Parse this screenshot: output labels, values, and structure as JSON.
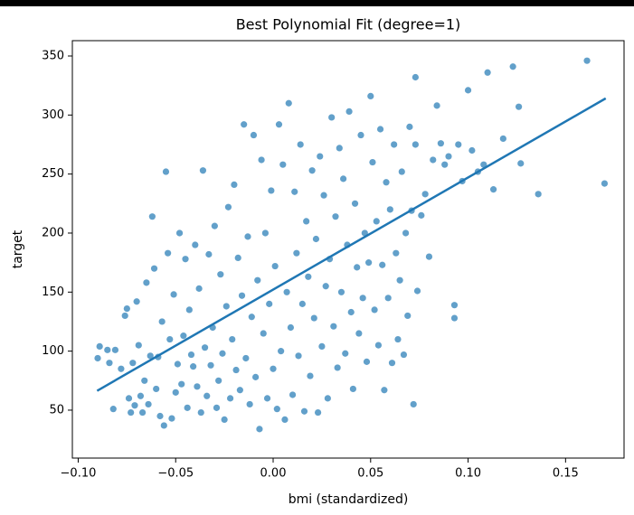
{
  "chart_data": {
    "type": "scatter",
    "title": "Best Polynomial Fit (degree=1)",
    "x_label": "bmi (standardized)",
    "y_label": "target",
    "xlim": [
      -0.103,
      0.18
    ],
    "ylim": [
      9.4,
      363
    ],
    "xticks": [
      {
        "value": -0.1,
        "label": "−0.10"
      },
      {
        "value": -0.05,
        "label": "−0.05"
      },
      {
        "value": 0,
        "label": "0.00"
      },
      {
        "value": 0.05,
        "label": "0.05"
      },
      {
        "value": 0.1,
        "label": "0.10"
      },
      {
        "value": 0.15,
        "label": "0.15"
      }
    ],
    "yticks": [
      50,
      100,
      150,
      200,
      250,
      300,
      350
    ],
    "series": [
      {
        "type": "scatter",
        "color": "#1f77b4",
        "x": [
          -0.09,
          -0.089,
          -0.085,
          -0.084,
          -0.082,
          -0.081,
          -0.078,
          -0.076,
          -0.075,
          -0.074,
          -0.073,
          -0.072,
          -0.071,
          -0.07,
          -0.069,
          -0.068,
          -0.067,
          -0.066,
          -0.065,
          -0.064,
          -0.063,
          -0.062,
          -0.061,
          -0.06,
          -0.059,
          -0.058,
          -0.057,
          -0.056,
          -0.055,
          -0.054,
          -0.053,
          -0.052,
          -0.051,
          -0.05,
          -0.049,
          -0.048,
          -0.047,
          -0.046,
          -0.045,
          -0.044,
          -0.043,
          -0.042,
          -0.041,
          -0.04,
          -0.039,
          -0.038,
          -0.037,
          -0.036,
          -0.035,
          -0.034,
          -0.033,
          -0.032,
          -0.031,
          -0.03,
          -0.029,
          -0.028,
          -0.027,
          -0.026,
          -0.025,
          -0.024,
          -0.023,
          -0.022,
          -0.021,
          -0.02,
          -0.019,
          -0.018,
          -0.017,
          -0.016,
          -0.015,
          -0.014,
          -0.013,
          -0.012,
          -0.011,
          -0.01,
          -0.009,
          -0.008,
          -0.007,
          -0.006,
          -0.005,
          -0.004,
          -0.003,
          -0.002,
          -0.001,
          0.0,
          0.001,
          0.002,
          0.003,
          0.004,
          0.005,
          0.006,
          0.007,
          0.008,
          0.009,
          0.01,
          0.011,
          0.012,
          0.013,
          0.014,
          0.015,
          0.016,
          0.017,
          0.018,
          0.019,
          0.02,
          0.021,
          0.022,
          0.023,
          0.024,
          0.025,
          0.026,
          0.027,
          0.028,
          0.029,
          0.03,
          0.031,
          0.032,
          0.033,
          0.034,
          0.035,
          0.036,
          0.037,
          0.038,
          0.039,
          0.04,
          0.041,
          0.042,
          0.043,
          0.044,
          0.045,
          0.046,
          0.047,
          0.048,
          0.049,
          0.05,
          0.051,
          0.052,
          0.053,
          0.054,
          0.055,
          0.056,
          0.057,
          0.058,
          0.059,
          0.06,
          0.061,
          0.062,
          0.063,
          0.064,
          0.065,
          0.066,
          0.067,
          0.068,
          0.069,
          0.07,
          0.071,
          0.072,
          0.073,
          0.074,
          0.076,
          0.078,
          0.08,
          0.082,
          0.084,
          0.086,
          0.088,
          0.09,
          0.093,
          0.093,
          0.095,
          0.097,
          0.1,
          0.102,
          0.105,
          0.108,
          0.11,
          0.113,
          0.118,
          0.123,
          0.126,
          0.127,
          0.136,
          0.161,
          0.17,
          0.073
        ],
        "values": [
          94,
          104,
          101,
          90,
          51,
          101,
          85,
          130,
          136,
          60,
          48,
          90,
          54,
          142,
          105,
          62,
          48,
          75,
          158,
          55,
          96,
          214,
          170,
          68,
          95,
          45,
          125,
          37,
          252,
          183,
          110,
          43,
          148,
          65,
          89,
          200,
          72,
          113,
          178,
          52,
          135,
          97,
          87,
          190,
          70,
          153,
          48,
          253,
          103,
          62,
          182,
          88,
          120,
          206,
          52,
          75,
          165,
          98,
          42,
          138,
          222,
          60,
          110,
          241,
          84,
          179,
          67,
          147,
          292,
          94,
          197,
          55,
          129,
          283,
          78,
          160,
          34,
          262,
          115,
          200,
          60,
          140,
          236,
          85,
          172,
          51,
          292,
          100,
          258,
          42,
          150,
          310,
          120,
          63,
          235,
          183,
          96,
          275,
          140,
          49,
          210,
          163,
          79,
          253,
          128,
          195,
          48,
          265,
          104,
          232,
          155,
          60,
          178,
          298,
          121,
          214,
          86,
          272,
          150,
          246,
          98,
          190,
          303,
          133,
          68,
          225,
          171,
          115,
          283,
          145,
          200,
          91,
          175,
          316,
          260,
          135,
          210,
          105,
          288,
          173,
          67,
          243,
          145,
          220,
          90,
          275,
          183,
          110,
          160,
          252,
          97,
          200,
          130,
          290,
          219,
          55,
          275,
          151,
          215,
          233,
          180,
          262,
          308,
          276,
          258,
          265,
          139,
          128,
          275,
          244,
          321,
          270,
          252,
          258,
          336,
          237,
          280,
          341,
          307,
          259,
          233,
          346,
          242,
          332
        ]
      },
      {
        "type": "line",
        "color": "#1f77b4",
        "x": [
          -0.0903,
          0.1706
        ],
        "values": [
          66.4,
          314.1
        ]
      }
    ]
  }
}
